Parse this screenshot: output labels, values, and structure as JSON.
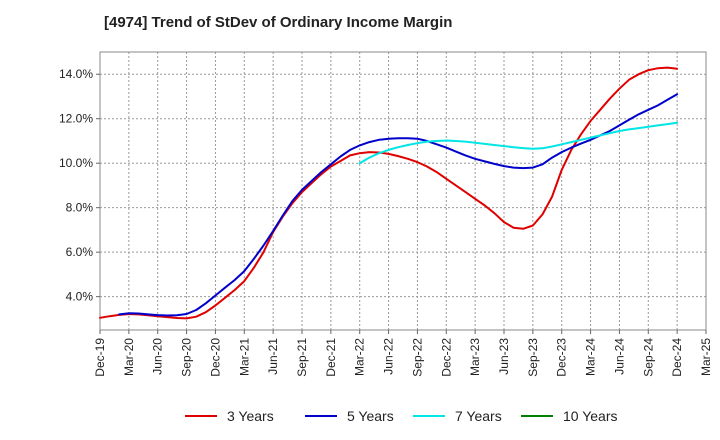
{
  "title": "[4974]  Trend of StDev of Ordinary Income Margin",
  "chart_data": {
    "type": "line",
    "title": "[4974]  Trend of StDev of Ordinary Income Margin",
    "xlabel": "",
    "ylabel": "",
    "x_ticks": [
      "Dec-19",
      "Mar-20",
      "Jun-20",
      "Sep-20",
      "Dec-20",
      "Mar-21",
      "Jun-21",
      "Sep-21",
      "Dec-21",
      "Mar-22",
      "Jun-22",
      "Sep-22",
      "Dec-22",
      "Mar-23",
      "Jun-23",
      "Sep-23",
      "Dec-23",
      "Mar-24",
      "Jun-24",
      "Sep-24",
      "Dec-24",
      "Mar-25"
    ],
    "y_ticks": [
      "4.0%",
      "6.0%",
      "8.0%",
      "10.0%",
      "12.0%",
      "14.0%"
    ],
    "y_tick_values": [
      4,
      6,
      8,
      10,
      12,
      14
    ],
    "ylim": [
      2.5,
      15.0
    ],
    "grid": true,
    "legend_position": "bottom",
    "series": [
      {
        "name": "3 Years",
        "color": "#e00000",
        "x": [
          "Dec-19",
          "Jan-20",
          "Feb-20",
          "Mar-20",
          "Apr-20",
          "May-20",
          "Jun-20",
          "Jul-20",
          "Aug-20",
          "Sep-20",
          "Oct-20",
          "Nov-20",
          "Dec-20",
          "Jan-21",
          "Feb-21",
          "Mar-21",
          "Apr-21",
          "May-21",
          "Jun-21",
          "Jul-21",
          "Aug-21",
          "Sep-21",
          "Oct-21",
          "Nov-21",
          "Dec-21",
          "Jan-22",
          "Feb-22",
          "Mar-22",
          "Apr-22",
          "May-22",
          "Jun-22",
          "Jul-22",
          "Aug-22",
          "Sep-22",
          "Oct-22",
          "Nov-22",
          "Dec-22",
          "Jan-23",
          "Feb-23",
          "Mar-23",
          "Apr-23",
          "May-23",
          "Jun-23",
          "Jul-23",
          "Aug-23",
          "Sep-23",
          "Oct-23",
          "Nov-23",
          "Dec-23",
          "Jan-24",
          "Feb-24",
          "Mar-24",
          "Apr-24",
          "May-24",
          "Jun-24",
          "Jul-24",
          "Aug-24",
          "Sep-24",
          "Oct-24",
          "Nov-24",
          "Dec-24"
        ],
        "values": [
          3.05,
          3.12,
          3.18,
          3.22,
          3.2,
          3.16,
          3.12,
          3.08,
          3.04,
          3.02,
          3.1,
          3.3,
          3.6,
          3.95,
          4.3,
          4.7,
          5.3,
          6.0,
          6.9,
          7.6,
          8.2,
          8.7,
          9.1,
          9.5,
          9.85,
          10.1,
          10.35,
          10.45,
          10.5,
          10.48,
          10.42,
          10.32,
          10.2,
          10.05,
          9.85,
          9.6,
          9.3,
          9.0,
          8.7,
          8.4,
          8.1,
          7.75,
          7.35,
          7.1,
          7.05,
          7.2,
          7.7,
          8.5,
          9.7,
          10.6,
          11.3,
          11.9,
          12.4,
          12.9,
          13.35,
          13.75,
          14.0,
          14.18,
          14.27,
          14.3,
          14.25
        ]
      },
      {
        "name": "5 Years",
        "color": "#0000cc",
        "x": [
          "Dec-19",
          "Jan-20",
          "Feb-20",
          "Mar-20",
          "Apr-20",
          "May-20",
          "Jun-20",
          "Jul-20",
          "Aug-20",
          "Sep-20",
          "Oct-20",
          "Nov-20",
          "Dec-20",
          "Jan-21",
          "Feb-21",
          "Mar-21",
          "Apr-21",
          "May-21",
          "Jun-21",
          "Jul-21",
          "Aug-21",
          "Sep-21",
          "Oct-21",
          "Nov-21",
          "Dec-21",
          "Jan-22",
          "Feb-22",
          "Mar-22",
          "Apr-22",
          "May-22",
          "Jun-22",
          "Jul-22",
          "Aug-22",
          "Sep-22",
          "Oct-22",
          "Nov-22",
          "Dec-22",
          "Jan-23",
          "Feb-23",
          "Mar-23",
          "Apr-23",
          "May-23",
          "Jun-23",
          "Jul-23",
          "Aug-23",
          "Sep-23",
          "Oct-23",
          "Nov-23",
          "Dec-23",
          "Jan-24",
          "Feb-24",
          "Mar-24",
          "Apr-24",
          "May-24",
          "Jun-24",
          "Jul-24",
          "Aug-24",
          "Sep-24",
          "Oct-24",
          "Nov-24",
          "Dec-24"
        ],
        "values": [
          null,
          null,
          3.2,
          3.25,
          3.24,
          3.2,
          3.17,
          3.15,
          3.16,
          3.22,
          3.4,
          3.7,
          4.05,
          4.4,
          4.75,
          5.15,
          5.7,
          6.3,
          6.95,
          7.65,
          8.3,
          8.8,
          9.2,
          9.6,
          9.95,
          10.3,
          10.6,
          10.8,
          10.95,
          11.05,
          11.1,
          11.12,
          11.12,
          11.1,
          11.0,
          10.85,
          10.7,
          10.52,
          10.35,
          10.2,
          10.08,
          9.97,
          9.87,
          9.8,
          9.78,
          9.8,
          9.95,
          10.25,
          10.5,
          10.7,
          10.88,
          11.05,
          11.25,
          11.45,
          11.7,
          11.95,
          12.2,
          12.4,
          12.6,
          12.85,
          13.1
        ]
      },
      {
        "name": "7 Years",
        "color": "#00e5e5",
        "x": [
          "Mar-22",
          "Apr-22",
          "May-22",
          "Jun-22",
          "Jul-22",
          "Aug-22",
          "Sep-22",
          "Oct-22",
          "Nov-22",
          "Dec-22",
          "Jan-23",
          "Feb-23",
          "Mar-23",
          "Apr-23",
          "May-23",
          "Jun-23",
          "Jul-23",
          "Aug-23",
          "Sep-23",
          "Oct-23",
          "Nov-23",
          "Dec-23",
          "Jan-24",
          "Feb-24",
          "Mar-24",
          "Apr-24",
          "May-24",
          "Jun-24",
          "Jul-24",
          "Aug-24",
          "Sep-24",
          "Oct-24",
          "Nov-24",
          "Dec-24"
        ],
        "values": [
          10.0,
          10.25,
          10.45,
          10.6,
          10.72,
          10.82,
          10.9,
          10.97,
          11.0,
          11.02,
          11.0,
          10.97,
          10.92,
          10.87,
          10.82,
          10.77,
          10.72,
          10.68,
          10.65,
          10.67,
          10.75,
          10.85,
          10.95,
          11.05,
          11.15,
          11.25,
          11.35,
          11.45,
          11.52,
          11.58,
          11.64,
          11.7,
          11.76,
          11.82
        ]
      },
      {
        "name": "10 Years",
        "color": "#008000",
        "x": [],
        "values": []
      }
    ]
  }
}
